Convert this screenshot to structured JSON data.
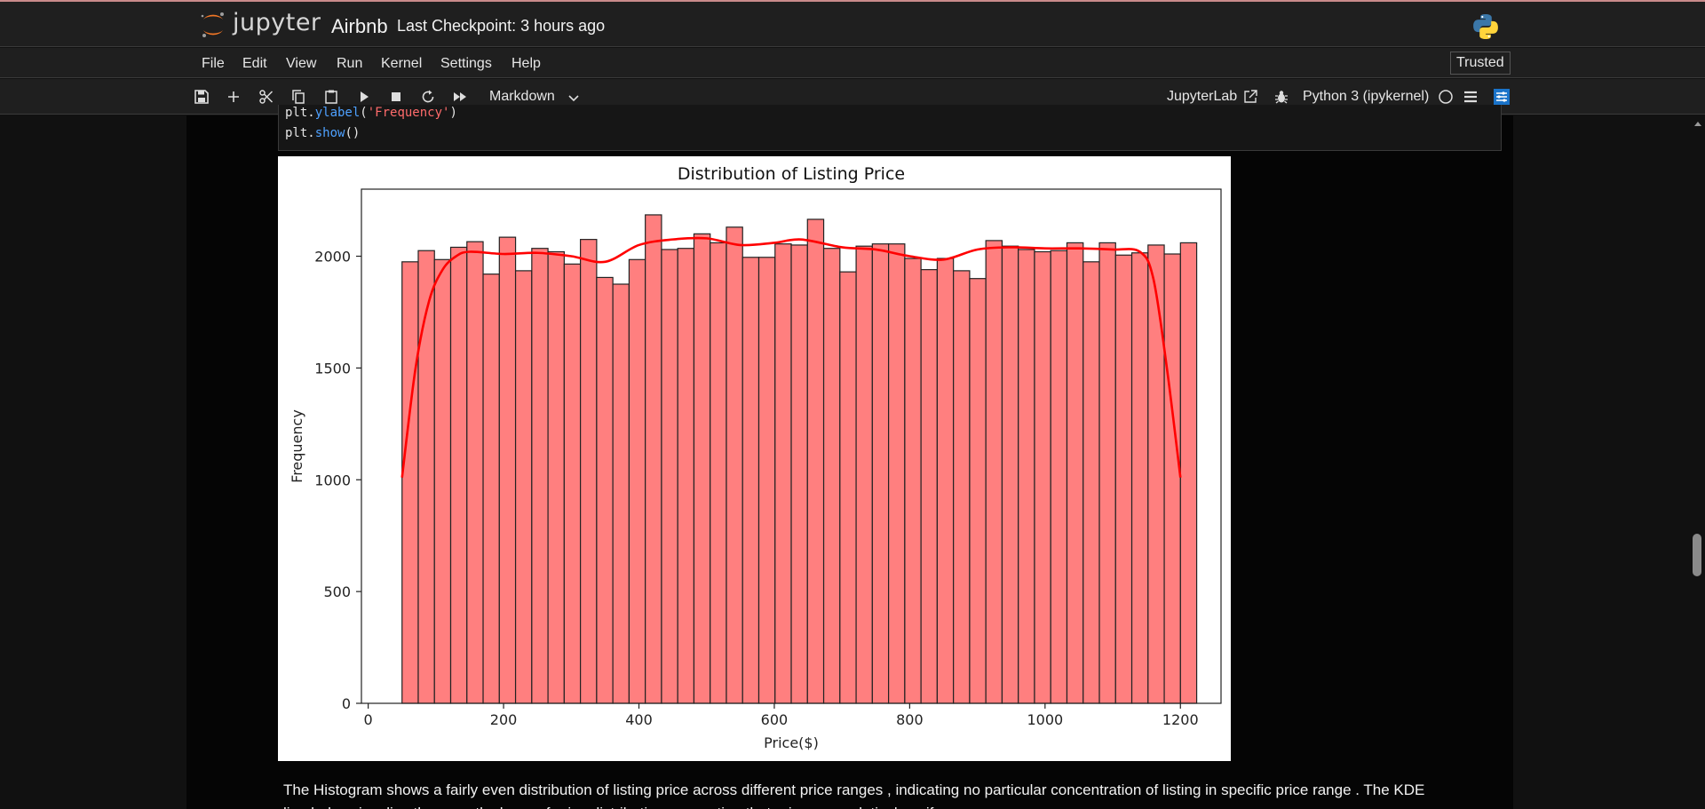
{
  "header": {
    "logo_text": "jupyter",
    "notebook_name": "Airbnb",
    "checkpoint": "Last Checkpoint: 3 hours ago"
  },
  "menu": {
    "items": [
      "File",
      "Edit",
      "View",
      "Run",
      "Kernel",
      "Settings",
      "Help"
    ],
    "trusted": "Trusted"
  },
  "toolbar": {
    "cell_type": "Markdown",
    "jupyterlab_label": "JupyterLab",
    "kernel": "Python 3 (ipykernel)",
    "icons": [
      "save-icon",
      "add-icon",
      "cut-icon",
      "copy-icon",
      "paste-icon",
      "run-icon",
      "stop-icon",
      "restart-icon",
      "fast-forward-icon"
    ]
  },
  "code": {
    "line1_prefix": "plt.",
    "line1_fn": "ylabel",
    "line1_open": "(",
    "line1_str": "'Frequency'",
    "line1_close": ")",
    "line2_prefix": "plt.",
    "line2_fn": "show",
    "line2_close": "()"
  },
  "chart_data": {
    "type": "bar",
    "title": "Distribution of Listing Price",
    "xlabel": "Price($)",
    "ylabel": "Frequency",
    "xlim": [
      -10,
      1260
    ],
    "ylim": [
      0,
      2300
    ],
    "xticks": [
      0,
      200,
      400,
      600,
      800,
      1000,
      1200
    ],
    "yticks": [
      0,
      500,
      1000,
      1500,
      2000
    ],
    "bin_start": 50,
    "bin_width": 23.96,
    "values": [
      1975,
      2025,
      1985,
      2040,
      2065,
      1920,
      2085,
      1935,
      2035,
      2020,
      1965,
      2075,
      1905,
      1875,
      1985,
      2185,
      2030,
      2035,
      2100,
      2060,
      2130,
      1995,
      1995,
      2055,
      2050,
      2165,
      2035,
      1930,
      2045,
      2055,
      2055,
      1990,
      1940,
      1990,
      1935,
      1900,
      2070,
      2045,
      2030,
      2020,
      2025,
      2060,
      1975,
      2060,
      2005,
      2015,
      2050,
      2010,
      2060
    ],
    "kde": {
      "color": "#ff0000",
      "x": [
        50,
        70,
        90,
        110,
        130,
        150,
        200,
        250,
        300,
        350,
        400,
        450,
        500,
        550,
        600,
        640,
        700,
        750,
        800,
        850,
        900,
        950,
        1000,
        1050,
        1100,
        1140,
        1160,
        1180,
        1200
      ],
      "y": [
        1010,
        1500,
        1800,
        1940,
        2000,
        2020,
        2010,
        2015,
        2000,
        1975,
        2050,
        2075,
        2080,
        2050,
        2060,
        2075,
        2040,
        2030,
        2000,
        1985,
        2030,
        2040,
        2035,
        2035,
        2030,
        2020,
        1900,
        1500,
        1010
      ]
    },
    "bar_color": "#ff7f7f",
    "grid": false,
    "legend": "none"
  },
  "markdown": {
    "line1": "The Histogram shows a fairly even distribution of listing price across different price ranges , indicating no particular concentration of listing in specific price range . The KDE",
    "line2": "line helps visualize the smooth shape of price distribution suggesting that prices are relatively uniform."
  }
}
